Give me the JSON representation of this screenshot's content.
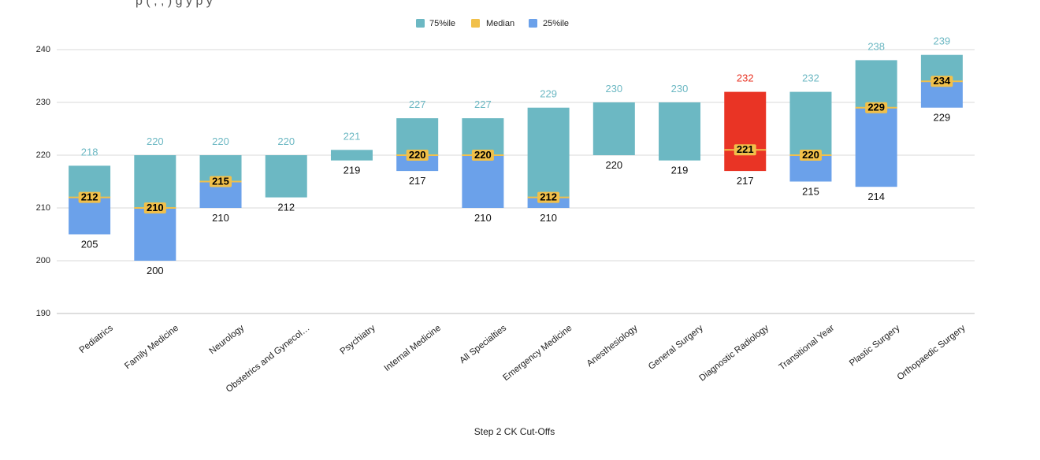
{
  "chart_data": {
    "type": "bar",
    "title_fragment": "p   (     ,       ,        )                   g       y p    y",
    "xlabel": "Step 2 CK Cut-Offs",
    "ylabel": "",
    "ylim": [
      190,
      240
    ],
    "yticks": [
      190,
      200,
      210,
      220,
      230,
      240
    ],
    "grid": true,
    "legend_position": "top-center",
    "legend": [
      {
        "name": "75%ile",
        "color": "#6cb8c3"
      },
      {
        "name": "Median",
        "color": "#f1c04a"
      },
      {
        "name": "25%ile",
        "color": "#6ba1ea"
      }
    ],
    "highlight_color": "#e93425",
    "categories": [
      "Pediatrics",
      "Family Medicine",
      "Neurology",
      "Obstetrics and Gynecol…",
      "Psychiatry",
      "Internal Medicine",
      "All Specialties",
      "Emergency Medicine",
      "Anesthesiology",
      "General Surgery",
      "Diagnostic Radiology",
      "Transitional Year",
      "Plastic Surgery",
      "Orthopaedic Surgery"
    ],
    "series": [
      {
        "name": "25%ile",
        "values": [
          205,
          200,
          210,
          212,
          219,
          217,
          210,
          210,
          220,
          219,
          217,
          215,
          214,
          229
        ]
      },
      {
        "name": "Median",
        "values": [
          212,
          210,
          215,
          null,
          null,
          220,
          220,
          212,
          null,
          null,
          221,
          220,
          229,
          234
        ]
      },
      {
        "name": "75%ile",
        "values": [
          218,
          220,
          220,
          220,
          221,
          227,
          227,
          229,
          230,
          230,
          232,
          232,
          238,
          239
        ]
      }
    ],
    "highlighted_category": "Diagnostic Radiology"
  }
}
